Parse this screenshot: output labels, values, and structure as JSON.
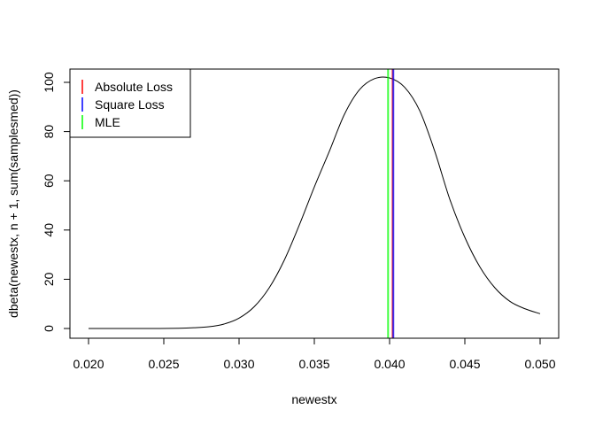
{
  "chart_data": {
    "type": "line",
    "title": "",
    "xlabel": "newestx",
    "ylabel": "dbeta(newestx, n + 1, sum(samplesmed))",
    "xlim": [
      0.02,
      0.05
    ],
    "ylim": [
      0,
      102
    ],
    "x_ticks": [
      "0.020",
      "0.025",
      "0.030",
      "0.035",
      "0.040",
      "0.045",
      "0.050"
    ],
    "y_ticks": [
      "0",
      "20",
      "40",
      "60",
      "80",
      "100"
    ],
    "grid": false,
    "legend_position": "top-left",
    "series": [
      {
        "color": "#000000",
        "x": [
          0.02,
          0.022,
          0.024,
          0.026,
          0.027,
          0.028,
          0.029,
          0.03,
          0.031,
          0.032,
          0.033,
          0.034,
          0.035,
          0.036,
          0.037,
          0.038,
          0.039,
          0.04,
          0.041,
          0.042,
          0.043,
          0.044,
          0.045,
          0.046,
          0.047,
          0.048,
          0.049,
          0.05
        ],
        "y": [
          0.0,
          0.0,
          0.0,
          0.1,
          0.3,
          0.7,
          1.8,
          4.2,
          8.8,
          16.5,
          27.7,
          42.0,
          57.5,
          72.0,
          87.0,
          97.0,
          101.5,
          101.8,
          98.0,
          88.5,
          72.0,
          52.5,
          37.0,
          25.0,
          16.5,
          11.0,
          8.0,
          6.0
        ]
      }
    ],
    "vlines": [
      {
        "name": "Absolute Loss",
        "x": 0.0402,
        "color": "#ff0000"
      },
      {
        "name": "Square Loss",
        "x": 0.04025,
        "color": "#0000ff"
      },
      {
        "name": "MLE",
        "x": 0.0399,
        "color": "#00ff00"
      }
    ],
    "legend": [
      {
        "label": "Absolute Loss",
        "color": "#ff0000"
      },
      {
        "label": "Square Loss",
        "color": "#0000ff"
      },
      {
        "label": "MLE",
        "color": "#00ff00"
      }
    ]
  }
}
